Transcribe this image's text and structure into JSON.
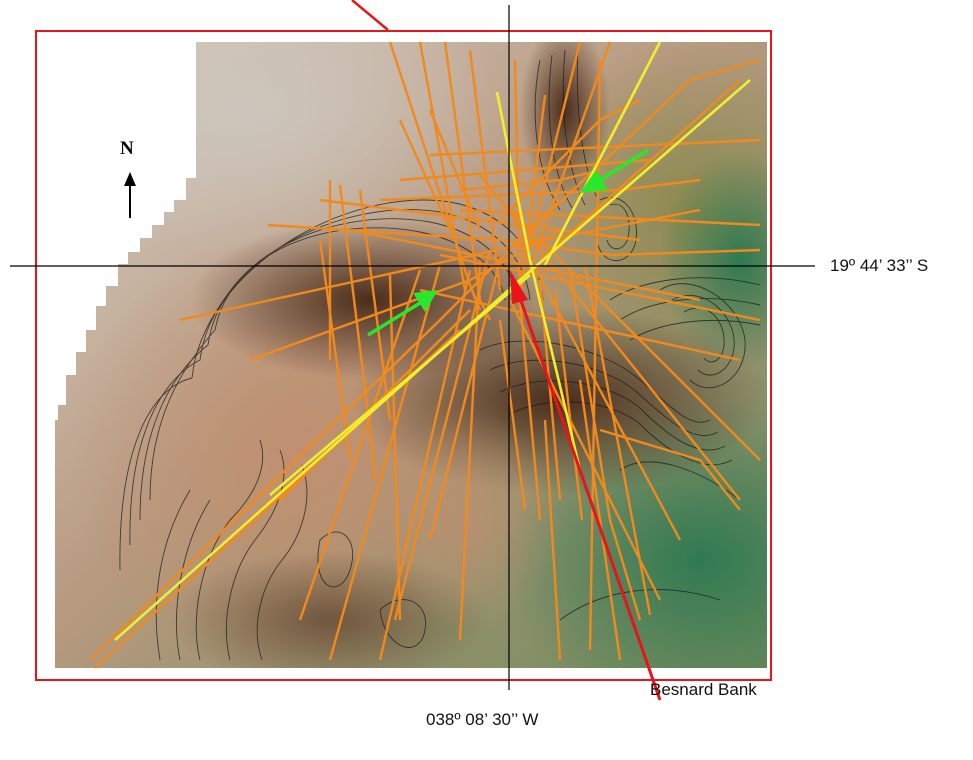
{
  "map": {
    "compass_letter": "N",
    "latitude_label": "19º 44’ 33’’ S",
    "longitude_label": "038º 08’ 30’’ W",
    "feature_label": "Besnard Bank"
  },
  "icons": {
    "north_arrow": "north-arrow-icon",
    "pointer_arrows": "green-arrow-icon"
  },
  "colors": {
    "frame": "#e8151b",
    "track_orange": "#f08a1e",
    "track_yellow": "#f2ee2a",
    "pointer_green": "#27e82a",
    "callout_red": "#e8141a",
    "crosshair": "#000000",
    "contour": "#1a1a1a"
  }
}
